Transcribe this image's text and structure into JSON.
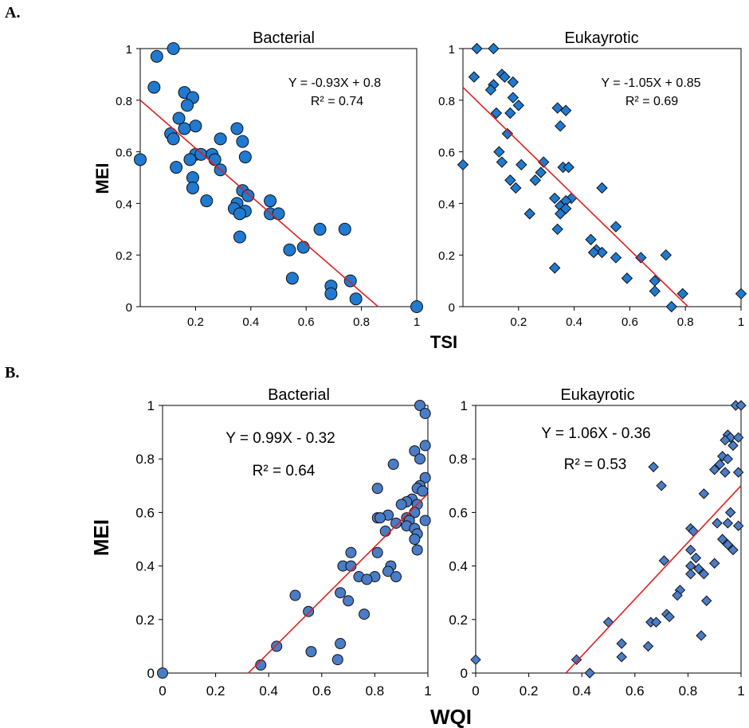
{
  "panels": {
    "A": "A.",
    "B": "B."
  },
  "colors": {
    "marker_fill_A": "#1f7ad0",
    "marker_fill_B": "#4a7cc7",
    "marker_stroke": "#111111",
    "fit_line": "#e02020",
    "axis": "#000000"
  },
  "chart_data": [
    {
      "id": "A-bacterial",
      "panel": "A",
      "type": "scatter",
      "title": "Bacterial",
      "xlabel": "TSI",
      "ylabel": "MEI",
      "xlim": [
        0,
        1
      ],
      "ylim": [
        0,
        1
      ],
      "xticks": [
        "0.2",
        "0.4",
        "0.6",
        "0.8",
        "1"
      ],
      "yticks": [
        "0",
        "0.2",
        "0.4",
        "0.6",
        "0.8",
        "1"
      ],
      "marker": "circle",
      "equation": "Y = -0.93X + 0.8",
      "r2": "R² = 0.74",
      "fit": {
        "slope": -0.93,
        "intercept": 0.8,
        "x_range": [
          0,
          0.86
        ]
      },
      "points": [
        [
          0.06,
          0.97
        ],
        [
          0.12,
          1.0
        ],
        [
          0.05,
          0.85
        ],
        [
          0.0,
          0.57
        ],
        [
          0.16,
          0.83
        ],
        [
          0.19,
          0.81
        ],
        [
          0.17,
          0.78
        ],
        [
          0.14,
          0.73
        ],
        [
          0.2,
          0.7
        ],
        [
          0.16,
          0.69
        ],
        [
          0.11,
          0.67
        ],
        [
          0.12,
          0.65
        ],
        [
          0.35,
          0.69
        ],
        [
          0.37,
          0.64
        ],
        [
          0.29,
          0.65
        ],
        [
          0.2,
          0.59
        ],
        [
          0.22,
          0.59
        ],
        [
          0.26,
          0.59
        ],
        [
          0.18,
          0.57
        ],
        [
          0.27,
          0.57
        ],
        [
          0.38,
          0.58
        ],
        [
          0.13,
          0.54
        ],
        [
          0.19,
          0.5
        ],
        [
          0.29,
          0.53
        ],
        [
          0.19,
          0.46
        ],
        [
          0.37,
          0.45
        ],
        [
          0.39,
          0.43
        ],
        [
          0.24,
          0.41
        ],
        [
          0.35,
          0.4
        ],
        [
          0.34,
          0.38
        ],
        [
          0.38,
          0.37
        ],
        [
          0.36,
          0.36
        ],
        [
          0.47,
          0.41
        ],
        [
          0.47,
          0.36
        ],
        [
          0.5,
          0.36
        ],
        [
          0.36,
          0.27
        ],
        [
          0.65,
          0.3
        ],
        [
          0.74,
          0.3
        ],
        [
          0.54,
          0.22
        ],
        [
          0.59,
          0.23
        ],
        [
          0.55,
          0.11
        ],
        [
          0.76,
          0.1
        ],
        [
          0.69,
          0.08
        ],
        [
          0.69,
          0.05
        ],
        [
          0.78,
          0.03
        ],
        [
          1.0,
          0.0
        ]
      ]
    },
    {
      "id": "A-eukaryotic",
      "panel": "A",
      "type": "scatter",
      "title": "Eukayrotic",
      "xlabel": "TSI",
      "ylabel": "MEI",
      "xlim": [
        0,
        1
      ],
      "ylim": [
        0,
        1
      ],
      "xticks": [
        "0.2",
        "0.4",
        "0.6",
        "0.8",
        "1"
      ],
      "yticks": [
        "0",
        "0.2",
        "0.4",
        "0.6",
        "0.8",
        "1"
      ],
      "marker": "diamond",
      "equation": "Y = -1.05X + 0.85",
      "r2": "R² = 0.69",
      "fit": {
        "slope": -1.05,
        "intercept": 0.85,
        "x_range": [
          0,
          0.81
        ]
      },
      "points": [
        [
          0.05,
          1.0
        ],
        [
          0.11,
          1.0
        ],
        [
          0.04,
          0.89
        ],
        [
          0.14,
          0.9
        ],
        [
          0.15,
          0.89
        ],
        [
          0.11,
          0.86
        ],
        [
          0.18,
          0.87
        ],
        [
          0.1,
          0.84
        ],
        [
          0.18,
          0.81
        ],
        [
          0.2,
          0.78
        ],
        [
          0.34,
          0.77
        ],
        [
          0.37,
          0.76
        ],
        [
          0.12,
          0.75
        ],
        [
          0.17,
          0.75
        ],
        [
          0.35,
          0.7
        ],
        [
          0.16,
          0.67
        ],
        [
          0.13,
          0.6
        ],
        [
          0.14,
          0.56
        ],
        [
          0.29,
          0.56
        ],
        [
          0.21,
          0.55
        ],
        [
          0.36,
          0.54
        ],
        [
          0.38,
          0.54
        ],
        [
          0.0,
          0.55
        ],
        [
          0.28,
          0.52
        ],
        [
          0.17,
          0.49
        ],
        [
          0.26,
          0.49
        ],
        [
          0.19,
          0.46
        ],
        [
          0.5,
          0.46
        ],
        [
          0.33,
          0.42
        ],
        [
          0.39,
          0.42
        ],
        [
          0.37,
          0.41
        ],
        [
          0.35,
          0.39
        ],
        [
          0.37,
          0.38
        ],
        [
          0.35,
          0.36
        ],
        [
          0.24,
          0.36
        ],
        [
          0.55,
          0.31
        ],
        [
          0.34,
          0.3
        ],
        [
          0.46,
          0.26
        ],
        [
          0.48,
          0.22
        ],
        [
          0.5,
          0.21
        ],
        [
          0.47,
          0.21
        ],
        [
          0.55,
          0.19
        ],
        [
          0.64,
          0.19
        ],
        [
          0.73,
          0.2
        ],
        [
          0.33,
          0.15
        ],
        [
          0.59,
          0.11
        ],
        [
          0.69,
          0.1
        ],
        [
          0.69,
          0.06
        ],
        [
          0.79,
          0.05
        ],
        [
          1.0,
          0.05
        ],
        [
          0.75,
          0.0
        ]
      ]
    },
    {
      "id": "B-bacterial",
      "panel": "B",
      "type": "scatter",
      "title": "Bacterial",
      "xlabel": "WQI",
      "ylabel": "MEI",
      "xlim": [
        0,
        1
      ],
      "ylim": [
        0,
        1
      ],
      "xticks": [
        "0",
        "0.2",
        "0.4",
        "0.6",
        "0.8",
        "1"
      ],
      "yticks": [
        "0",
        "0.2",
        "0.4",
        "0.6",
        "0.8",
        "1"
      ],
      "marker": "circle",
      "equation": "Y = 0.99X - 0.32",
      "r2": "R² = 0.64",
      "fit": {
        "slope": 0.99,
        "intercept": -0.32,
        "x_range": [
          0.323,
          1.0
        ]
      },
      "points": [
        [
          0.97,
          1.0
        ],
        [
          0.99,
          0.97
        ],
        [
          0.99,
          0.85
        ],
        [
          0.95,
          0.83
        ],
        [
          0.97,
          0.8
        ],
        [
          0.87,
          0.78
        ],
        [
          0.99,
          0.73
        ],
        [
          0.97,
          0.7
        ],
        [
          0.96,
          0.69
        ],
        [
          0.81,
          0.69
        ],
        [
          0.98,
          0.68
        ],
        [
          0.94,
          0.65
        ],
        [
          0.92,
          0.64
        ],
        [
          0.9,
          0.63
        ],
        [
          0.96,
          0.63
        ],
        [
          0.95,
          0.6
        ],
        [
          0.85,
          0.59
        ],
        [
          0.92,
          0.58
        ],
        [
          0.81,
          0.58
        ],
        [
          0.82,
          0.58
        ],
        [
          0.99,
          0.57
        ],
        [
          0.93,
          0.57
        ],
        [
          0.88,
          0.56
        ],
        [
          0.92,
          0.55
        ],
        [
          0.95,
          0.54
        ],
        [
          0.84,
          0.53
        ],
        [
          0.96,
          0.52
        ],
        [
          0.95,
          0.5
        ],
        [
          0.96,
          0.46
        ],
        [
          0.71,
          0.45
        ],
        [
          0.81,
          0.45
        ],
        [
          0.86,
          0.4
        ],
        [
          0.68,
          0.4
        ],
        [
          0.71,
          0.4
        ],
        [
          0.85,
          0.38
        ],
        [
          0.74,
          0.36
        ],
        [
          0.8,
          0.36
        ],
        [
          0.77,
          0.35
        ],
        [
          0.88,
          0.36
        ],
        [
          0.5,
          0.29
        ],
        [
          0.67,
          0.3
        ],
        [
          0.7,
          0.27
        ],
        [
          0.55,
          0.23
        ],
        [
          0.76,
          0.22
        ],
        [
          0.67,
          0.11
        ],
        [
          0.43,
          0.1
        ],
        [
          0.56,
          0.08
        ],
        [
          0.66,
          0.05
        ],
        [
          0.37,
          0.03
        ],
        [
          0.0,
          0.0
        ]
      ]
    },
    {
      "id": "B-eukaryotic",
      "panel": "B",
      "type": "scatter",
      "title": "Eukayrotic",
      "xlabel": "WQI",
      "ylabel": "MEI",
      "xlim": [
        0,
        1
      ],
      "ylim": [
        0,
        1
      ],
      "xticks": [
        "0",
        "0.2",
        "0.4",
        "0.6",
        "0.8",
        "1"
      ],
      "yticks": [
        "0",
        "0.2",
        "0.4",
        "0.6",
        "0.8",
        "1"
      ],
      "marker": "diamond",
      "equation": "Y = 1.06X - 0.36",
      "r2": "R² = 0.53",
      "fit": {
        "slope": 1.06,
        "intercept": -0.36,
        "x_range": [
          0.34,
          1.0
        ]
      },
      "points": [
        [
          0.98,
          1.0
        ],
        [
          1.0,
          1.0
        ],
        [
          0.95,
          0.89
        ],
        [
          0.96,
          0.88
        ],
        [
          0.99,
          0.88
        ],
        [
          0.94,
          0.87
        ],
        [
          0.97,
          0.85
        ],
        [
          0.93,
          0.81
        ],
        [
          0.95,
          0.8
        ],
        [
          0.92,
          0.78
        ],
        [
          0.9,
          0.76
        ],
        [
          0.94,
          0.75
        ],
        [
          0.99,
          0.75
        ],
        [
          0.67,
          0.77
        ],
        [
          0.7,
          0.7
        ],
        [
          0.86,
          0.67
        ],
        [
          0.96,
          0.6
        ],
        [
          0.95,
          0.56
        ],
        [
          0.91,
          0.56
        ],
        [
          0.99,
          0.55
        ],
        [
          0.81,
          0.54
        ],
        [
          0.82,
          0.53
        ],
        [
          0.93,
          0.5
        ],
        [
          0.95,
          0.48
        ],
        [
          0.97,
          0.46
        ],
        [
          0.81,
          0.46
        ],
        [
          0.83,
          0.43
        ],
        [
          0.71,
          0.42
        ],
        [
          0.9,
          0.41
        ],
        [
          0.81,
          0.4
        ],
        [
          0.84,
          0.39
        ],
        [
          0.86,
          0.37
        ],
        [
          0.81,
          0.37
        ],
        [
          0.77,
          0.31
        ],
        [
          0.76,
          0.29
        ],
        [
          0.87,
          0.27
        ],
        [
          0.72,
          0.22
        ],
        [
          0.73,
          0.21
        ],
        [
          0.5,
          0.19
        ],
        [
          0.66,
          0.19
        ],
        [
          0.68,
          0.19
        ],
        [
          0.85,
          0.14
        ],
        [
          0.55,
          0.11
        ],
        [
          0.65,
          0.1
        ],
        [
          0.55,
          0.06
        ],
        [
          0.0,
          0.05
        ],
        [
          0.38,
          0.05
        ],
        [
          0.43,
          0.0
        ]
      ]
    }
  ]
}
